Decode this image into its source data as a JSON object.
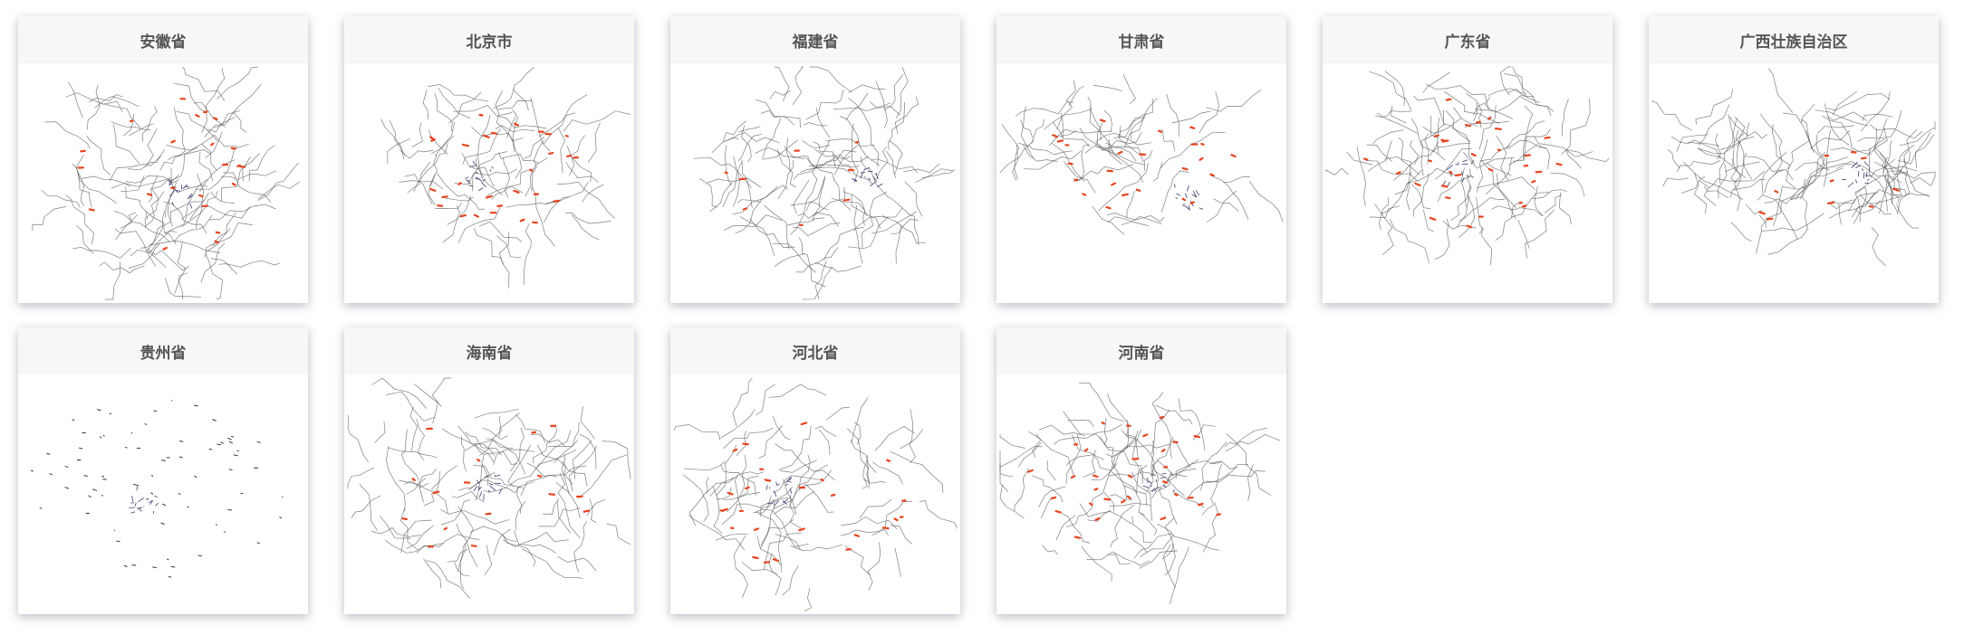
{
  "cards": [
    {
      "title": "安徽省",
      "map": "anhui-river-map"
    },
    {
      "title": "北京市",
      "map": "beijing-river-map"
    },
    {
      "title": "福建省",
      "map": "fujian-river-map"
    },
    {
      "title": "甘肃省",
      "map": "gansu-river-map"
    },
    {
      "title": "广东省",
      "map": "guangdong-river-map"
    },
    {
      "title": "广西壮族自治区",
      "map": "guangxi-river-map"
    },
    {
      "title": "贵州省",
      "map": "guizhou-river-map"
    },
    {
      "title": "海南省",
      "map": "hainan-river-map"
    },
    {
      "title": "河北省",
      "map": "hebei-river-map"
    },
    {
      "title": "河南省",
      "map": "henan-river-map"
    }
  ],
  "colors": {
    "river": "#555555",
    "highlight": "#e8421c",
    "dense": "#3a3a70",
    "header_bg": "#f7f7f7",
    "header_text": "#555555"
  }
}
